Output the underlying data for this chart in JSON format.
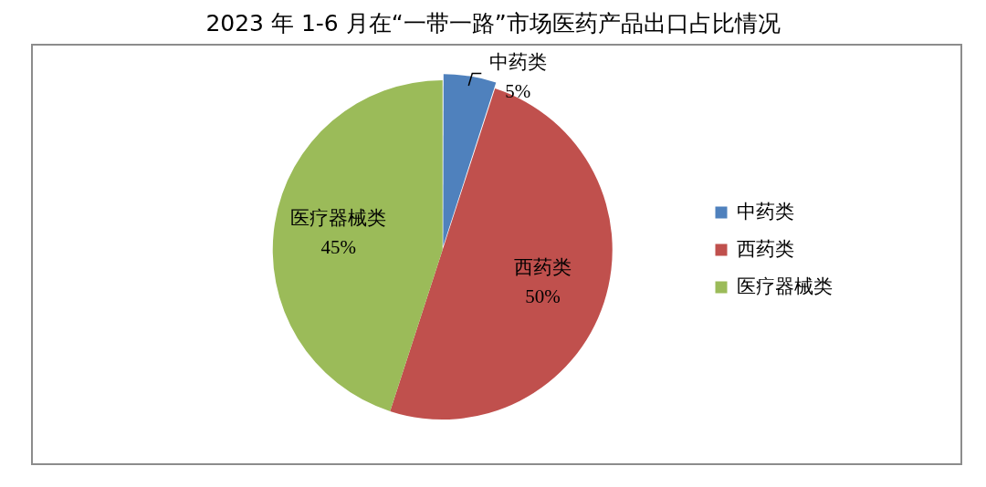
{
  "chart_data": {
    "type": "pie",
    "title": "2023 年 1-6 月在“一带一路”市场医药产品出口占比情况",
    "categories": [
      "中药类",
      "西药类",
      "医疗器械类"
    ],
    "values": [
      5,
      50,
      45
    ],
    "colors": [
      "#4f81bd",
      "#c0504d",
      "#9bbb59"
    ],
    "value_labels": [
      "5%",
      "50%",
      "45%"
    ],
    "legend": "right"
  }
}
